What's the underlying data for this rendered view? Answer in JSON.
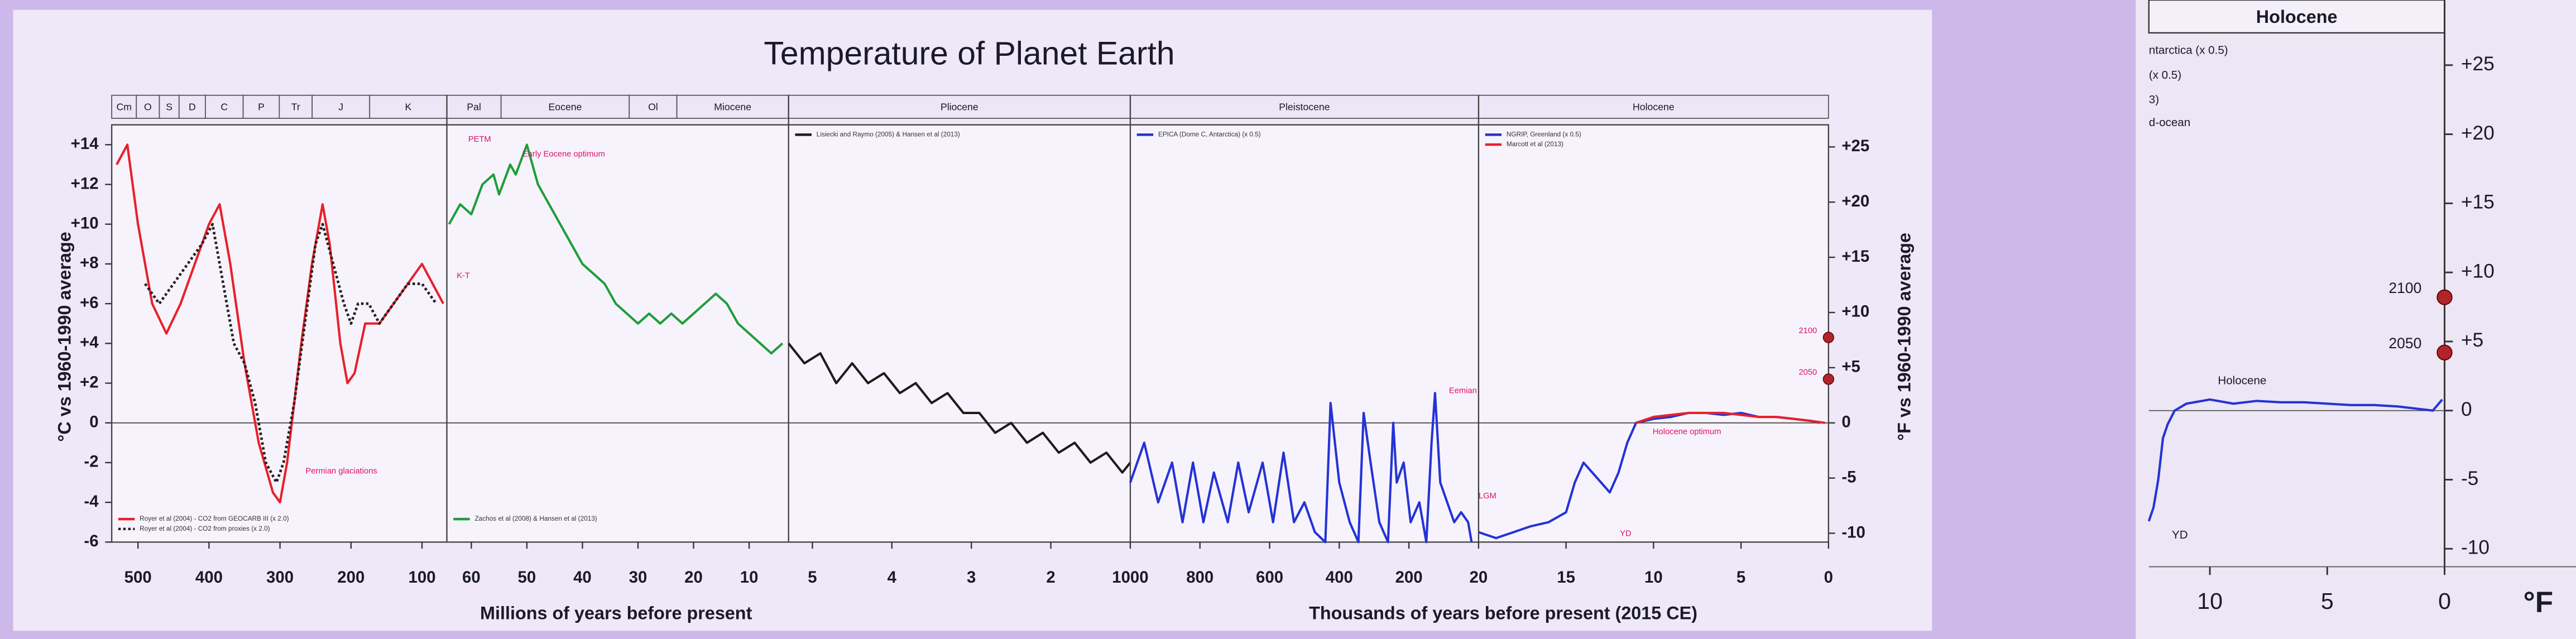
{
  "chart_data": [
    {
      "type": "line",
      "title": "Temperature of Planet Earth",
      "ylabel": "°C vs 1960-1990 average",
      "y2label": "°F vs 1960-1990 average",
      "ylim": [
        -6,
        15
      ],
      "yticks": [
        {
          "value": 14,
          "label": "+14"
        },
        {
          "value": 12,
          "label": "+12"
        },
        {
          "value": 10,
          "label": "+10"
        },
        {
          "value": 8,
          "label": "+8"
        },
        {
          "value": 6,
          "label": "+6"
        },
        {
          "value": 4,
          "label": "+4"
        },
        {
          "value": 2,
          "label": "+2"
        },
        0,
        -2,
        -4,
        -6
      ],
      "y2lim": [
        -10.8,
        27
      ],
      "y2ticks": [
        {
          "value": 25,
          "label": "+25"
        },
        {
          "value": 20,
          "label": "+20"
        },
        {
          "value": 15,
          "label": "+15"
        },
        {
          "value": 10,
          "label": "+10"
        },
        {
          "value": 5,
          "label": "+5"
        },
        0,
        -5,
        -10
      ],
      "periods": [
        "Cm",
        "O",
        "S",
        "D",
        "C",
        "P",
        "Tr",
        "J",
        "K",
        "Pal",
        "Eocene",
        "Ol",
        "Miocene",
        "Pliocene",
        "Pleistocene",
        "Holocene"
      ],
      "xlabels": [
        "Millions of years before present",
        "Thousands of years before present (2015 CE)"
      ],
      "annotations": [
        "PETM",
        "K-T",
        "Early Eocene optimum",
        "Permian glaciations",
        "Eemian",
        "LGM",
        "YD",
        "Holocene optimum"
      ],
      "panels": [
        {
          "xlim": [
            537,
            65
          ],
          "xticks": [
            500,
            400,
            300,
            200,
            100
          ],
          "legend": "lower left",
          "series": [
            {
              "name": "Royer et al (2004) - CO2 from GEOCARB III (x 2.0)",
              "color": "#e8202a",
              "style": "solid",
              "x": [
                530,
                515,
                500,
                480,
                460,
                440,
                420,
                400,
                385,
                370,
                350,
                330,
                310,
                300,
                290,
                270,
                255,
                240,
                230,
                215,
                205,
                195,
                180,
                160,
                140,
                120,
                100,
                85,
                70
              ],
              "values": [
                13,
                14,
                10,
                6,
                4.5,
                6,
                8,
                10,
                11,
                8,
                3,
                -1,
                -3.5,
                -4,
                -2,
                4,
                8,
                11,
                9,
                4,
                2,
                2.5,
                5,
                5,
                6,
                7,
                8,
                7,
                6
              ]
            },
            {
              "name": "Royer et al (2004) - CO2 from proxies (x 2.0)",
              "color": "#222222",
              "style": "dotted",
              "x": [
                490,
                470,
                450,
                430,
                410,
                395,
                380,
                365,
                350,
                335,
                320,
                305,
                295,
                280,
                265,
                250,
                240,
                225,
                210,
                200,
                190,
                175,
                160,
                140,
                120,
                100,
                80
              ],
              "values": [
                7,
                6,
                7,
                8,
                9,
                10,
                7,
                4,
                3,
                1,
                -2,
                -3,
                -2,
                1,
                5,
                9,
                10,
                8,
                6,
                5,
                6,
                6,
                5,
                6,
                7,
                7,
                6
              ]
            }
          ]
        },
        {
          "xlim": [
            64.4,
            2.9
          ],
          "xticks": [
            60,
            50,
            40,
            30,
            20,
            10
          ],
          "legend": "lower left",
          "series": [
            {
              "name": "Zachos et al (2008) & Hansen et al (2013)",
              "color": "#1e9e3a",
              "style": "solid",
              "x": [
                64,
                62,
                60,
                58,
                56,
                55,
                53,
                52,
                50,
                49,
                48,
                46,
                44,
                42,
                40,
                38,
                36,
                34,
                32,
                30,
                28,
                26,
                24,
                22,
                20,
                18,
                16,
                14,
                12,
                10,
                8,
                6,
                4
              ],
              "values": [
                10,
                11,
                10.5,
                12,
                12.5,
                11.5,
                13,
                12.5,
                14,
                13,
                12,
                11,
                10,
                9,
                8,
                7.5,
                7,
                6,
                5.5,
                5,
                5.5,
                5,
                5.5,
                5,
                5.5,
                6,
                6.5,
                6,
                5,
                4.5,
                4,
                3.5,
                4
              ]
            }
          ]
        },
        {
          "xlim": [
            5.3,
            1
          ],
          "xticks": [
            5,
            4,
            3,
            2,
            {
              "value": 1,
              "label": "1000"
            }
          ],
          "legend": "upper left",
          "series": [
            {
              "name": "Lisiecki and Raymo (2005) & Hansen et al (2013)",
              "color": "#1c1c1c",
              "style": "solid",
              "x": [
                5.3,
                5.1,
                4.9,
                4.7,
                4.5,
                4.3,
                4.1,
                3.9,
                3.7,
                3.5,
                3.3,
                3.1,
                2.9,
                2.7,
                2.5,
                2.3,
                2.1,
                1.9,
                1.7,
                1.5,
                1.3,
                1.1,
                1
              ],
              "values": [
                4,
                3,
                3.5,
                2,
                3,
                2,
                2.5,
                1.5,
                2,
                1,
                1.5,
                0.5,
                0.5,
                -0.5,
                0,
                -1,
                -0.5,
                -1.5,
                -1,
                -2,
                -1.5,
                -2.5,
                -2
              ]
            }
          ]
        },
        {
          "xlim": [
            1000,
            0
          ],
          "xticks": [
            800,
            600,
            400,
            200
          ],
          "legend": "upper left",
          "series": [
            {
              "name": "EPICA (Dome C, Antarctica) (x 0.5)",
              "color": "#2433d6",
              "style": "solid",
              "x": [
                1000,
                960,
                920,
                880,
                850,
                820,
                790,
                760,
                720,
                690,
                660,
                620,
                590,
                560,
                530,
                500,
                470,
                440,
                425,
                400,
                370,
                345,
                330,
                310,
                285,
                260,
                245,
                235,
                215,
                195,
                170,
                150,
                135,
                125,
                110,
                90,
                70,
                50,
                30,
                20
              ],
              "values": [
                -3,
                -1,
                -4,
                -2,
                -5,
                -2,
                -5,
                -2.5,
                -5,
                -2,
                -4.5,
                -2,
                -5,
                -1.5,
                -5,
                -4,
                -5.5,
                -6,
                1,
                -3,
                -5,
                -6,
                0.5,
                -2,
                -5,
                -6,
                0,
                -3,
                -2,
                -5,
                -4,
                -6,
                -1,
                1.5,
                -3,
                -4,
                -5,
                -4.5,
                -5,
                -6
              ]
            }
          ]
        },
        {
          "xlim": [
            20,
            0
          ],
          "xticks": [
            20,
            15,
            10,
            5,
            0
          ],
          "legend": "upper left",
          "series": [
            {
              "name": "NGRIP, Greenland (x 0.5)",
              "color": "#2433d6",
              "style": "solid",
              "x": [
                20,
                19,
                18,
                17,
                16,
                15,
                14.5,
                14,
                13.5,
                13,
                12.5,
                12,
                11.5,
                11,
                10,
                9,
                8,
                7,
                6,
                5,
                4,
                3,
                2,
                1,
                0.5
              ],
              "values": [
                -5.5,
                -5.8,
                -5.5,
                -5.2,
                -5,
                -4.5,
                -3,
                -2,
                -2.5,
                -3,
                -3.5,
                -2.5,
                -1,
                0,
                0.2,
                0.3,
                0.5,
                0.5,
                0.4,
                0.5,
                0.3,
                0.3,
                0.2,
                0.1,
                0
              ]
            },
            {
              "name": "Marcott et al (2013)",
              "color": "#e8202a",
              "style": "solid",
              "x": [
                11,
                10,
                9,
                8,
                7,
                6,
                5,
                4,
                3,
                2,
                1,
                0.2
              ],
              "values": [
                0,
                0.3,
                0.4,
                0.5,
                0.5,
                0.5,
                0.4,
                0.3,
                0.3,
                0.2,
                0.1,
                0
              ]
            }
          ],
          "points": [
            {
              "label": "2100",
              "value": 4.3
            },
            {
              "label": "2050",
              "value": 2.2
            }
          ]
        }
      ]
    },
    {
      "type": "line",
      "title": "Holocene",
      "xlabel": "°F",
      "annotations": [
        "Holocene",
        "YD"
      ],
      "legend_fragments": [
        "ntarctica (x 0.5)",
        "(x 0.5)",
        "3)",
        "d-ocean"
      ],
      "xlim": [
        12.6,
        0
      ],
      "xticks": [
        10,
        5,
        0
      ],
      "y2lim": [
        -11.3,
        27.1
      ],
      "y2ticks": [
        {
          "value": 25,
          "label": "+25"
        },
        {
          "value": 20,
          "label": "+20"
        },
        {
          "value": 15,
          "label": "+15"
        },
        {
          "value": 10,
          "label": "+10"
        },
        {
          "value": 5,
          "label": "+5"
        },
        0,
        -5,
        -10
      ],
      "series": [
        {
          "color": "#2433d6",
          "axis": "y2",
          "x": [
            12.6,
            12.4,
            12.2,
            12,
            11.8,
            11.5,
            11,
            10,
            9,
            8,
            7,
            6,
            5,
            4,
            3,
            2,
            1,
            0.5,
            0.1
          ],
          "values": [
            -8,
            -7,
            -5,
            -2,
            -1,
            0,
            0.5,
            0.8,
            0.5,
            0.7,
            0.6,
            0.6,
            0.5,
            0.4,
            0.4,
            0.3,
            0.1,
            0,
            0.8
          ]
        }
      ],
      "points": [
        {
          "label": "2100",
          "value": 8.2
        },
        {
          "label": "2050",
          "value": 4.2
        }
      ]
    }
  ]
}
